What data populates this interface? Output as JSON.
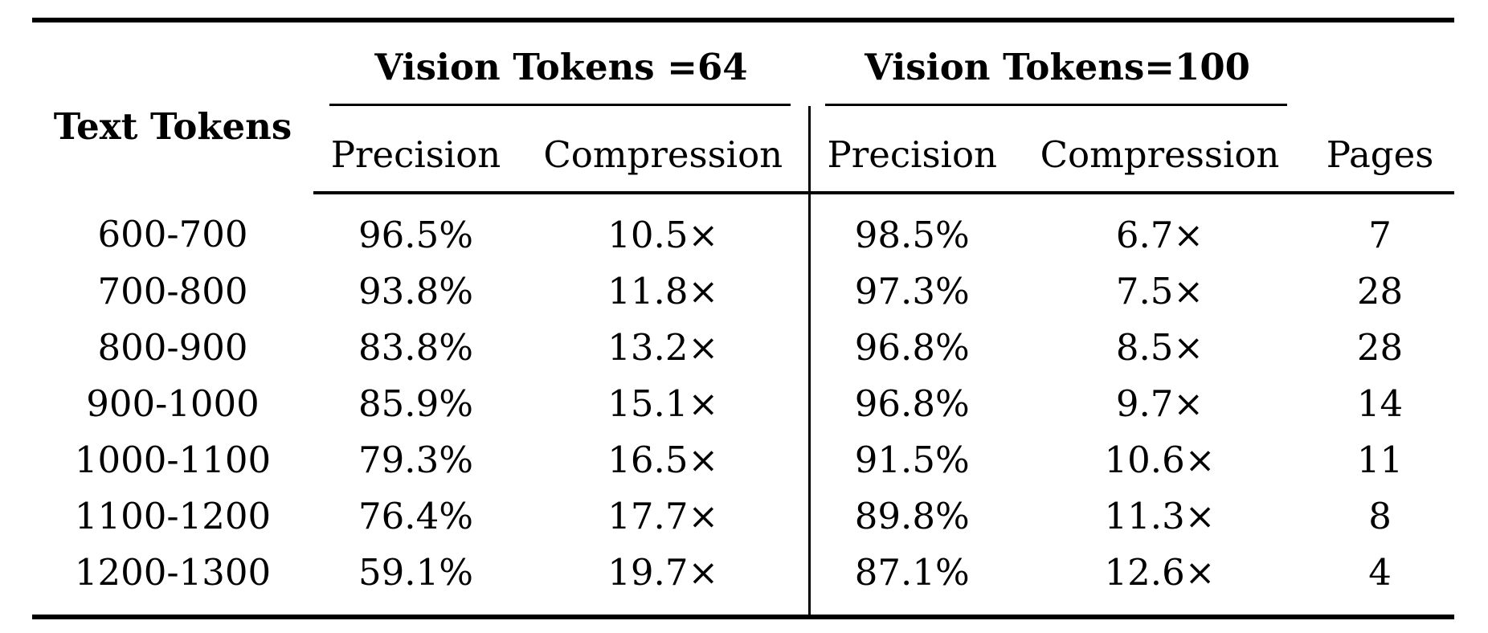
{
  "table": {
    "stub_header": "Text Tokens",
    "groups": [
      {
        "label": "Vision Tokens =64"
      },
      {
        "label": "Vision Tokens=100"
      }
    ],
    "subheaders": {
      "precision_64": "Precision",
      "compression_64": "Compression",
      "precision_100": "Precision",
      "compression_100": "Compression",
      "pages": "Pages"
    },
    "rows": [
      {
        "range": "600-700",
        "p64": "96.5%",
        "c64": "10.5×",
        "p100": "98.5%",
        "c100": "6.7×",
        "pages": "7"
      },
      {
        "range": "700-800",
        "p64": "93.8%",
        "c64": "11.8×",
        "p100": "97.3%",
        "c100": "7.5×",
        "pages": "28"
      },
      {
        "range": "800-900",
        "p64": "83.8%",
        "c64": "13.2×",
        "p100": "96.8%",
        "c100": "8.5×",
        "pages": "28"
      },
      {
        "range": "900-1000",
        "p64": "85.9%",
        "c64": "15.1×",
        "p100": "96.8%",
        "c100": "9.7×",
        "pages": "14"
      },
      {
        "range": "1000-1100",
        "p64": "79.3%",
        "c64": "16.5×",
        "p100": "91.5%",
        "c100": "10.6×",
        "pages": "11"
      },
      {
        "range": "1100-1200",
        "p64": "76.4%",
        "c64": "17.7×",
        "p100": "89.8%",
        "c100": "11.3×",
        "pages": "8"
      },
      {
        "range": "1200-1300",
        "p64": "59.1%",
        "c64": "19.7×",
        "p100": "87.1%",
        "c100": "12.6×",
        "pages": "4"
      }
    ]
  },
  "chart_data": {
    "type": "table",
    "column_groups": [
      "Vision Tokens =64",
      "Vision Tokens=100"
    ],
    "columns": [
      "Text Tokens",
      "Precision",
      "Compression",
      "Precision",
      "Compression",
      "Pages"
    ],
    "rows": [
      [
        "600-700",
        "96.5%",
        "10.5×",
        "98.5%",
        "6.7×",
        7
      ],
      [
        "700-800",
        "93.8%",
        "11.8×",
        "97.3%",
        "7.5×",
        28
      ],
      [
        "800-900",
        "83.8%",
        "13.2×",
        "96.8%",
        "8.5×",
        28
      ],
      [
        "900-1000",
        "85.9%",
        "15.1×",
        "96.8%",
        "9.7×",
        14
      ],
      [
        "1000-1100",
        "79.3%",
        "16.5×",
        "91.5%",
        "10.6×",
        11
      ],
      [
        "1100-1200",
        "76.4%",
        "17.7×",
        "89.8%",
        "11.3×",
        8
      ],
      [
        "1200-1300",
        "59.1%",
        "19.7×",
        "87.1%",
        "12.6×",
        4
      ]
    ]
  },
  "colors": {
    "text": "#000000",
    "background": "#ffffff",
    "rule": "#000000"
  }
}
